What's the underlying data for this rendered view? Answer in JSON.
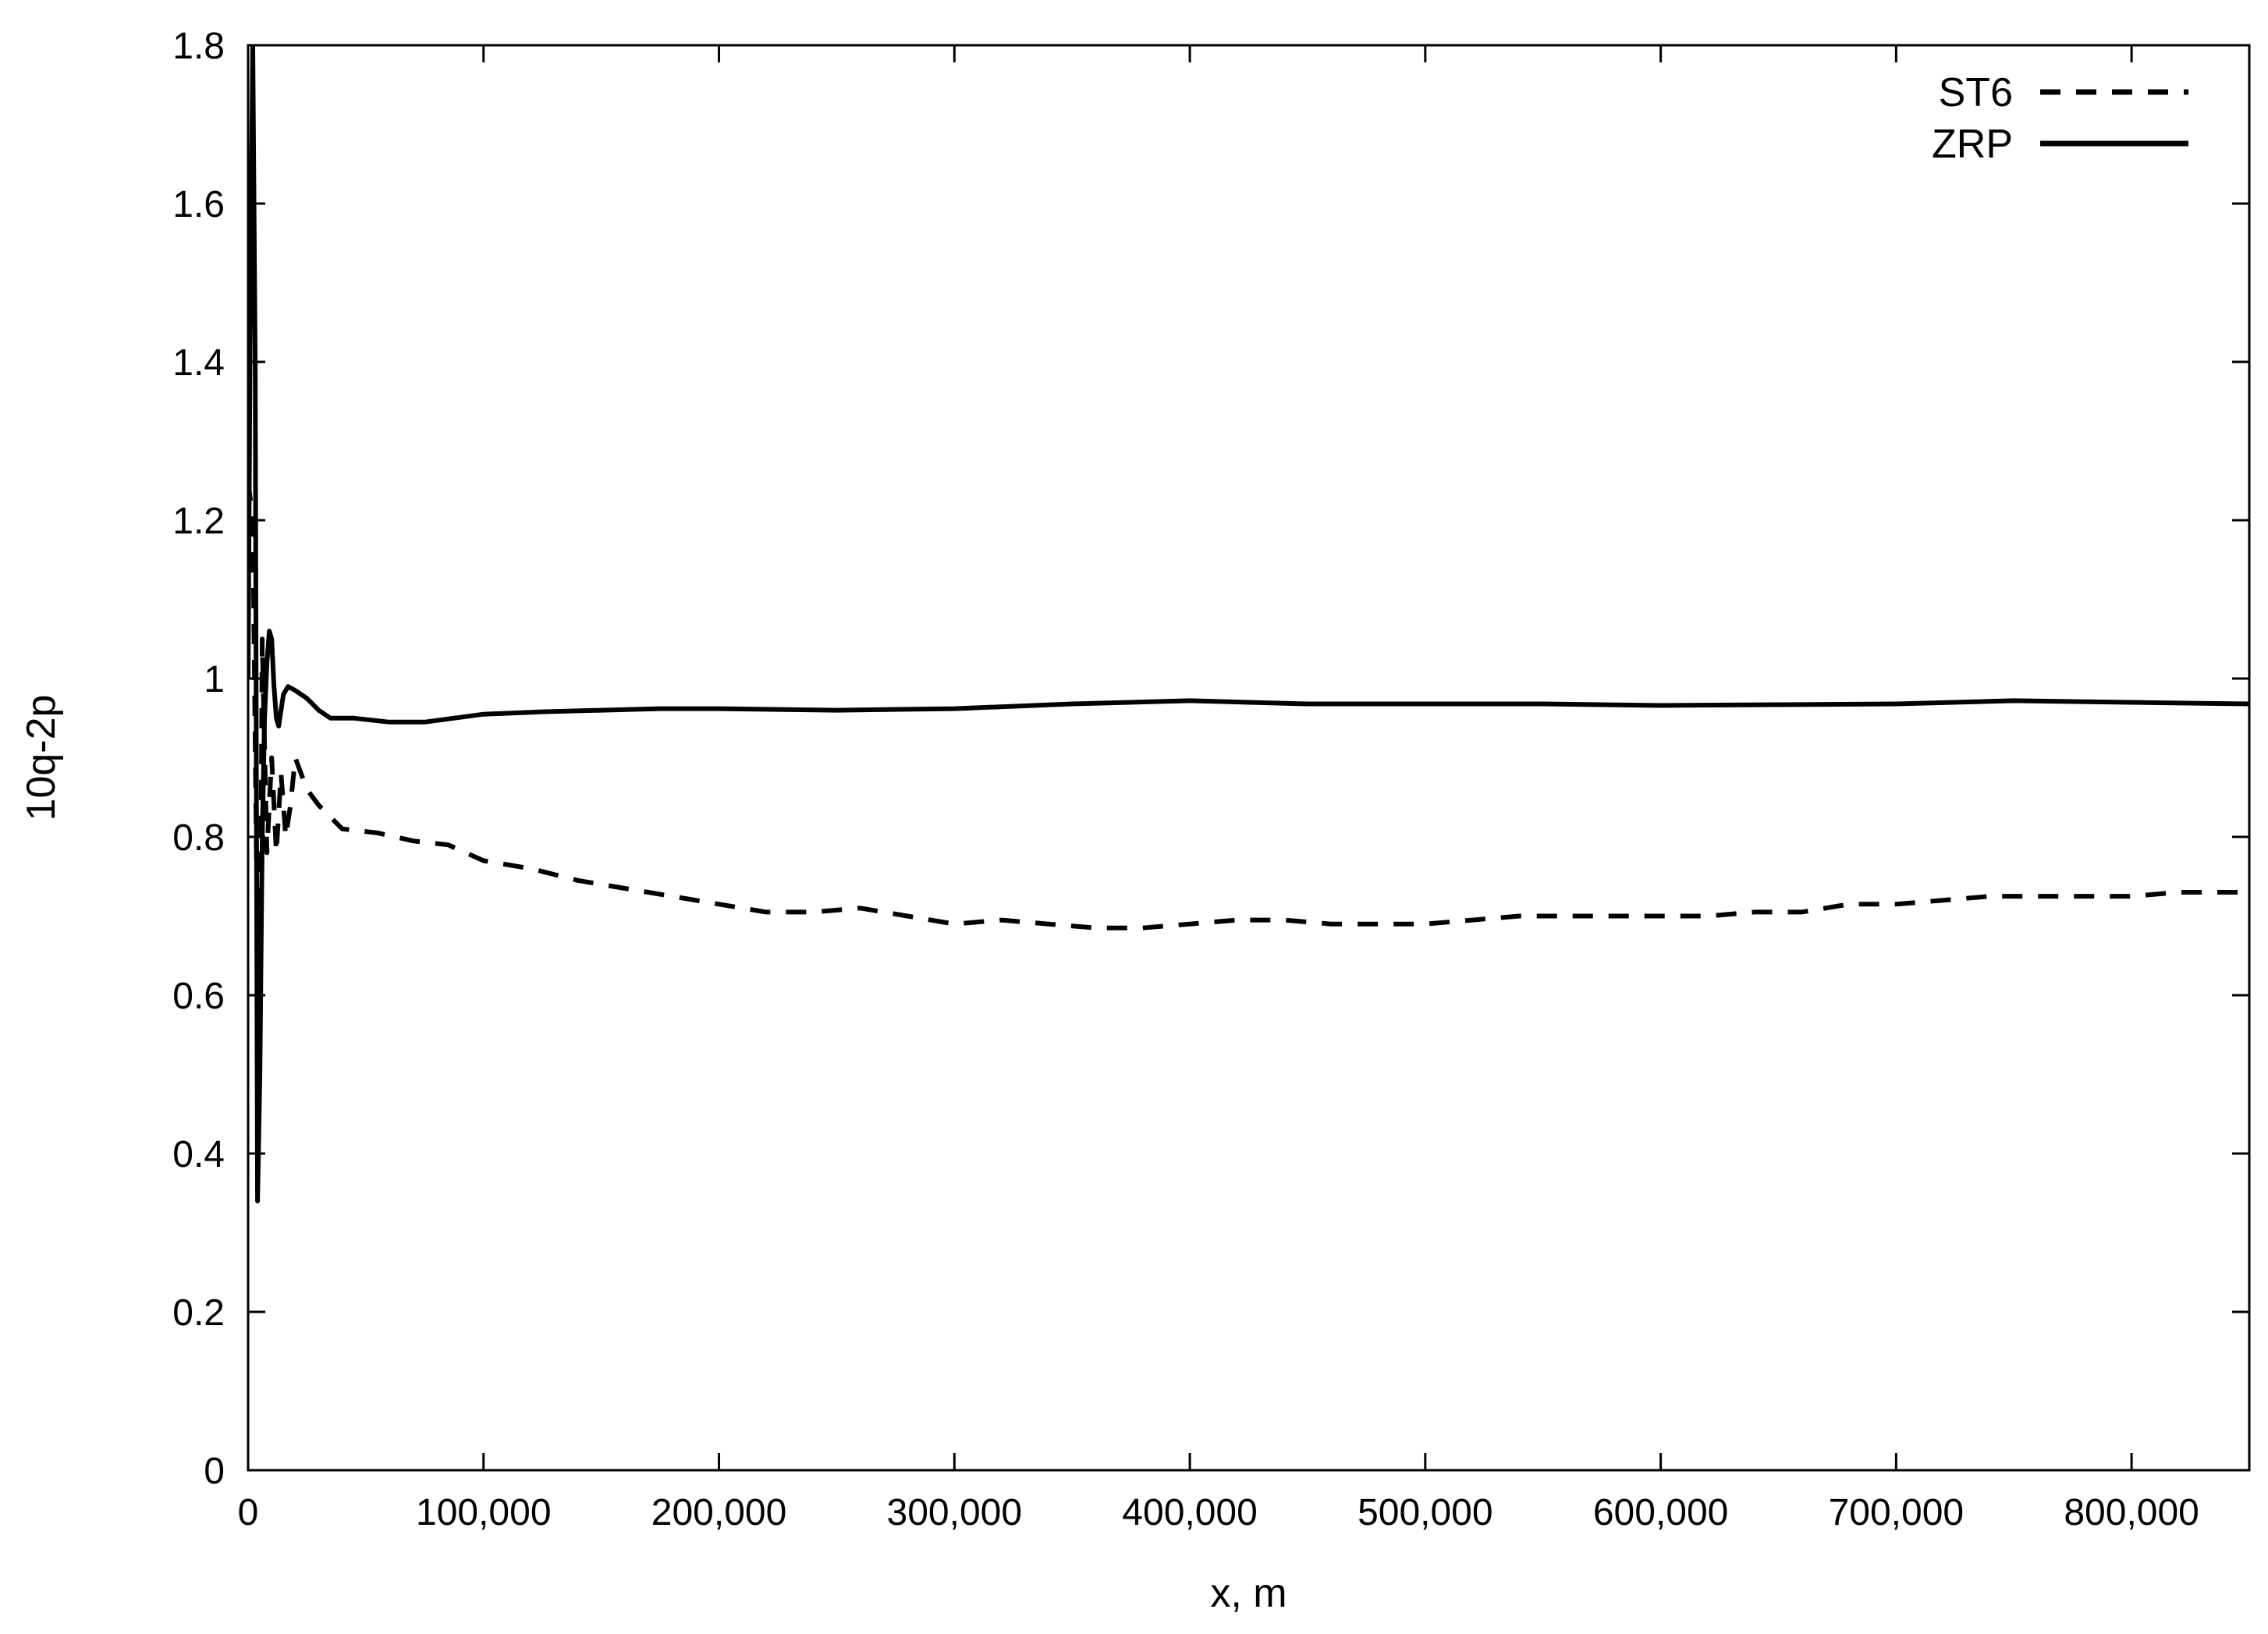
{
  "chart_data": {
    "type": "line",
    "title": "",
    "xlabel": "x, m",
    "ylabel": "10q-2p",
    "xlim": [
      0,
      850000
    ],
    "ylim": [
      0,
      1.8
    ],
    "xticks": [
      0,
      100000,
      200000,
      300000,
      400000,
      500000,
      600000,
      700000,
      800000
    ],
    "xtick_labels": [
      "0",
      "100,000",
      "200,000",
      "300,000",
      "400,000",
      "500,000",
      "600,000",
      "700,000",
      "800,000"
    ],
    "yticks": [
      0,
      0.2,
      0.4,
      0.6,
      0.8,
      1,
      1.2,
      1.4,
      1.6,
      1.8
    ],
    "ytick_labels": [
      "0",
      "0.2",
      "0.4",
      "0.6",
      "0.8",
      "1",
      "1.2",
      "1.4",
      "1.6",
      "1.8"
    ],
    "grid": false,
    "legend_position": "top-right",
    "series": [
      {
        "name": "ST6",
        "style": "dashed",
        "color": "#000000",
        "x": [
          0,
          2000,
          4000,
          5000,
          6000,
          8000,
          10000,
          12000,
          14000,
          16000,
          18000,
          20000,
          25000,
          30000,
          40000,
          55000,
          70000,
          85000,
          100000,
          120000,
          140000,
          160000,
          180000,
          200000,
          220000,
          240000,
          260000,
          280000,
          300000,
          320000,
          340000,
          360000,
          380000,
          400000,
          420000,
          440000,
          460000,
          480000,
          500000,
          520000,
          540000,
          560000,
          580000,
          600000,
          620000,
          640000,
          660000,
          680000,
          700000,
          720000,
          740000,
          760000,
          780000,
          800000,
          820000,
          850000
        ],
        "y": [
          1.25,
          1.2,
          0.65,
          0.55,
          1.05,
          0.78,
          0.9,
          0.78,
          0.88,
          0.8,
          0.84,
          0.9,
          0.86,
          0.84,
          0.81,
          0.805,
          0.795,
          0.79,
          0.77,
          0.76,
          0.745,
          0.735,
          0.725,
          0.715,
          0.705,
          0.705,
          0.71,
          0.7,
          0.69,
          0.695,
          0.69,
          0.685,
          0.685,
          0.69,
          0.695,
          0.695,
          0.69,
          0.69,
          0.69,
          0.695,
          0.7,
          0.7,
          0.7,
          0.7,
          0.7,
          0.705,
          0.705,
          0.715,
          0.715,
          0.72,
          0.725,
          0.725,
          0.725,
          0.725,
          0.73,
          0.73
        ]
      },
      {
        "name": "ZRP",
        "style": "solid",
        "color": "#000000",
        "x": [
          0,
          1000,
          2000,
          3000,
          4000,
          5000,
          6000,
          7000,
          8000,
          9000,
          10000,
          11000,
          12000,
          13000,
          14000,
          15000,
          17000,
          20000,
          25000,
          30000,
          35000,
          45000,
          60000,
          75000,
          100000,
          125000,
          150000,
          175000,
          200000,
          250000,
          300000,
          350000,
          400000,
          450000,
          500000,
          550000,
          600000,
          650000,
          700000,
          750000,
          800000,
          850000
        ],
        "y": [
          1.0,
          1.5,
          1.8,
          1.4,
          0.34,
          0.5,
          0.8,
          0.95,
          1.02,
          1.06,
          1.05,
          0.99,
          0.95,
          0.94,
          0.96,
          0.98,
          0.99,
          0.985,
          0.975,
          0.96,
          0.95,
          0.95,
          0.945,
          0.945,
          0.955,
          0.958,
          0.96,
          0.962,
          0.962,
          0.96,
          0.962,
          0.968,
          0.972,
          0.968,
          0.968,
          0.968,
          0.966,
          0.967,
          0.968,
          0.972,
          0.97,
          0.968
        ]
      }
    ]
  }
}
